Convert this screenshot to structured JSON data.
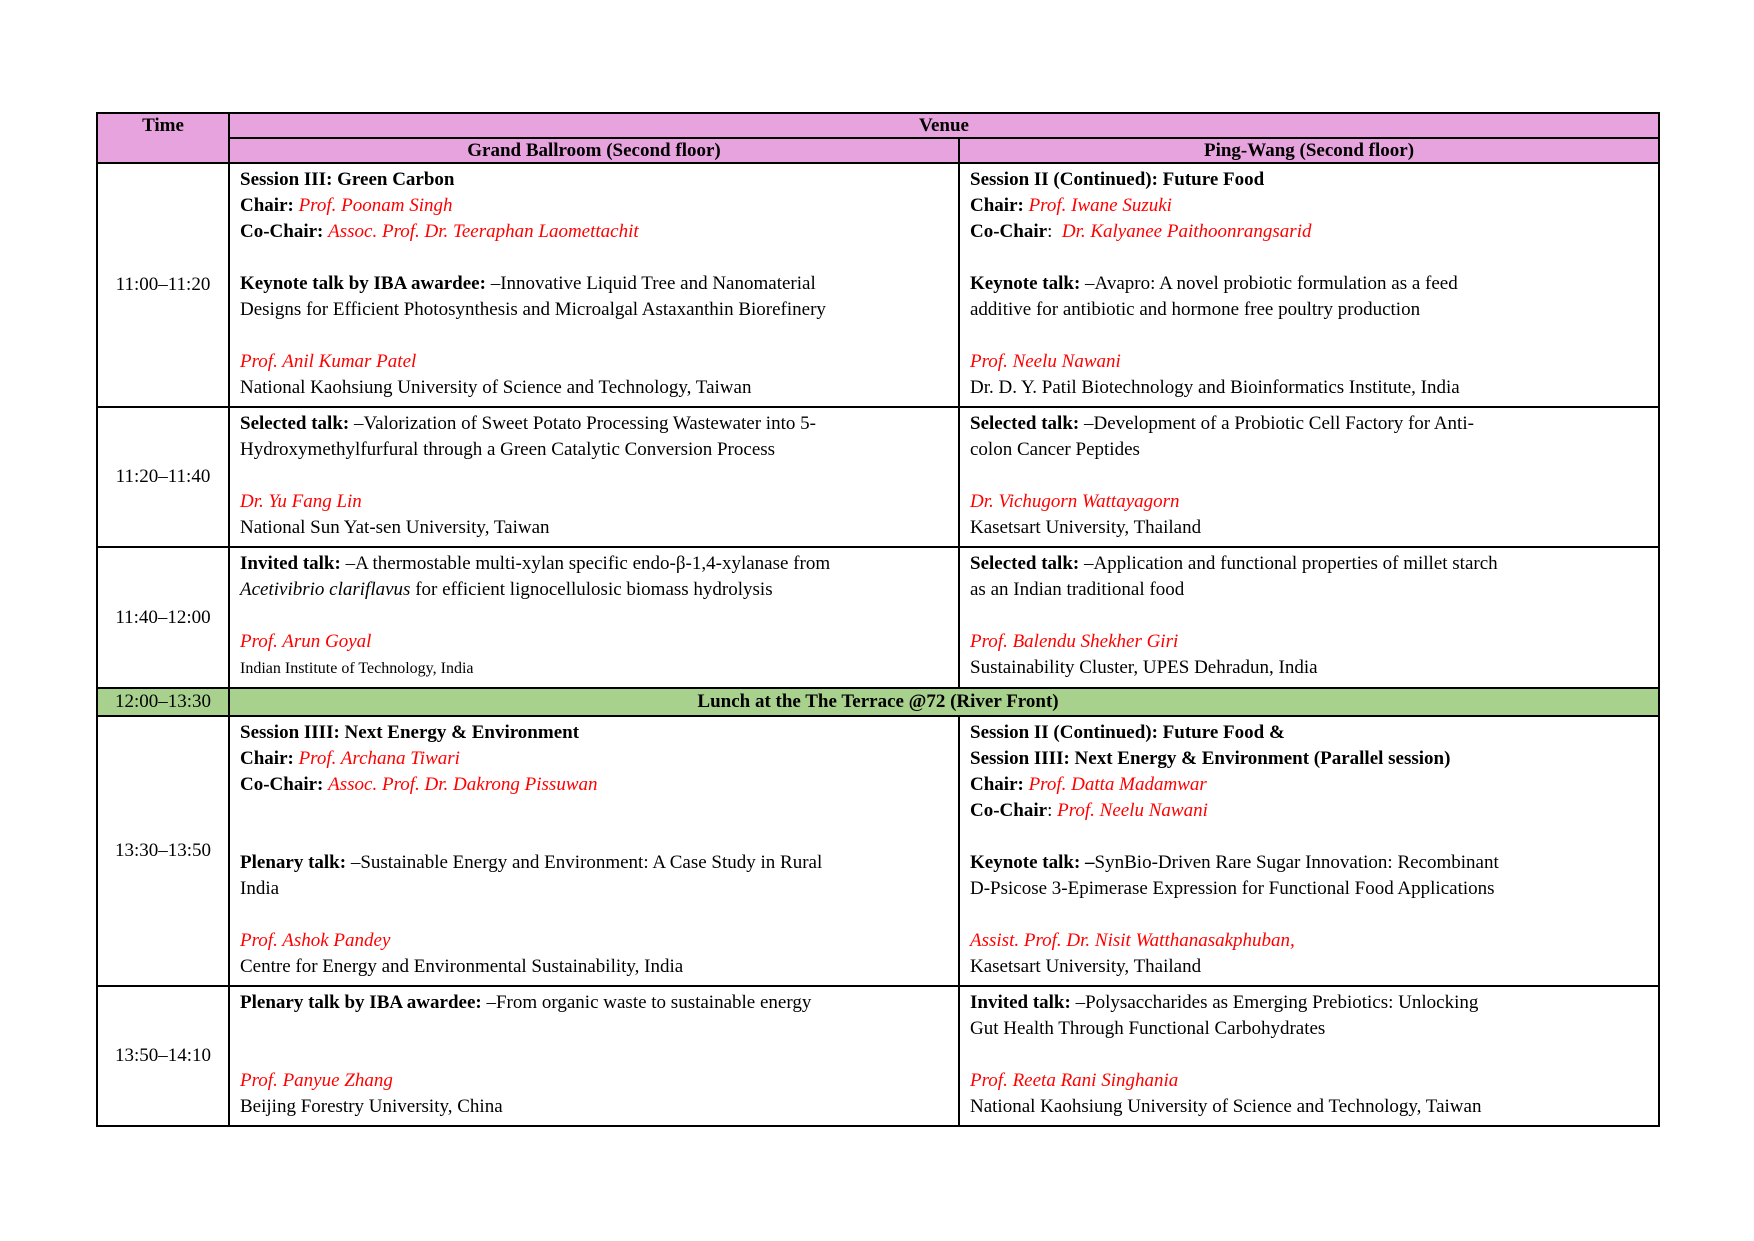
{
  "page": {
    "background": "#FFFFFF"
  },
  "table": {
    "colors": {
      "header_bg": "#E7A3DD",
      "lunch_bg": "#A9D18E",
      "speaker_red": "#FF0000",
      "border": "#000000"
    },
    "header": {
      "time": "Time",
      "venue": "Venue",
      "rooms": [
        "Grand Ballroom (Second floor)",
        "Ping-Wang (Second floor)"
      ]
    },
    "rows": [
      {
        "kind": "session",
        "time": "11:00–11:20",
        "cells": [
          {
            "lines": [
              [
                {
                  "t": "Session III: Green Carbon",
                  "s": "b"
                }
              ],
              [
                {
                  "t": "Chair: ",
                  "s": "b"
                },
                {
                  "t": "Prof. Poonam Singh",
                  "s": "r"
                }
              ],
              [
                {
                  "t": "Co-Chair: ",
                  "s": "b"
                },
                {
                  "t": "Assoc. Prof. Dr. Teeraphan Laomettachit",
                  "s": "r"
                }
              ],
              [],
              [
                {
                  "t": "Keynote talk by IBA awardee: ",
                  "s": "b"
                },
                {
                  "t": "–Innovative Liquid Tree and Nanomaterial",
                  "s": ""
                }
              ],
              [
                {
                  "t": "Designs for Efficient Photosynthesis and Microalgal Astaxanthin Biorefinery",
                  "s": ""
                }
              ],
              [],
              [
                {
                  "t": "Prof. Anil Kumar Patel",
                  "s": "r"
                }
              ],
              [
                {
                  "t": "National Kaohsiung University of Science and Technology, Taiwan",
                  "s": ""
                }
              ]
            ]
          },
          {
            "lines": [
              [
                {
                  "t": "Session II (Continued): Future Food",
                  "s": "b"
                }
              ],
              [
                {
                  "t": "Chair: ",
                  "s": "b"
                },
                {
                  "t": "Prof. Iwane Suzuki",
                  "s": "r"
                }
              ],
              [
                {
                  "t": "Co-Chair",
                  "s": "b"
                },
                {
                  "t": ":  ",
                  "s": ""
                },
                {
                  "t": "Dr. Kalyanee Paithoonrangsarid",
                  "s": "r"
                }
              ],
              [],
              [
                {
                  "t": "Keynote talk: ",
                  "s": "b"
                },
                {
                  "t": "–Avapro: A novel probiotic formulation as a feed",
                  "s": ""
                }
              ],
              [
                {
                  "t": "additive for antibiotic and hormone free poultry production",
                  "s": ""
                }
              ],
              [],
              [
                {
                  "t": "Prof. Neelu Nawani",
                  "s": "r"
                }
              ],
              [
                {
                  "t": "Dr. D. Y. Patil Biotechnology and Bioinformatics Institute, India",
                  "s": ""
                }
              ]
            ]
          }
        ]
      },
      {
        "kind": "session",
        "time": "11:20–11:40",
        "cells": [
          {
            "lines": [
              [
                {
                  "t": "Selected talk: ",
                  "s": "b"
                },
                {
                  "t": "–Valorization of Sweet Potato Processing Wastewater into 5-",
                  "s": ""
                }
              ],
              [
                {
                  "t": "Hydroxymethylfurfural through a Green Catalytic Conversion Process",
                  "s": ""
                }
              ],
              [],
              [
                {
                  "t": "Dr. Yu Fang Lin",
                  "s": "r"
                }
              ],
              [
                {
                  "t": "National Sun Yat-sen University, Taiwan",
                  "s": ""
                }
              ]
            ]
          },
          {
            "lines": [
              [
                {
                  "t": "Selected talk: ",
                  "s": "b"
                },
                {
                  "t": "–Development of a Probiotic Cell Factory for Anti-",
                  "s": ""
                }
              ],
              [
                {
                  "t": "colon Cancer Peptides",
                  "s": ""
                }
              ],
              [],
              [
                {
                  "t": "Dr. Vichugorn Wattayagorn",
                  "s": "r"
                }
              ],
              [
                {
                  "t": "Kasetsart University, Thailand",
                  "s": ""
                }
              ]
            ]
          }
        ]
      },
      {
        "kind": "session",
        "time": "11:40–12:00",
        "cells": [
          {
            "lines": [
              [
                {
                  "t": "Invited talk: ",
                  "s": "b"
                },
                {
                  "t": "–A thermostable multi-xylan specific endo-β-1,4-xylanase from",
                  "s": ""
                }
              ],
              [
                {
                  "t": "Acetivibrio clariflavus",
                  "s": "i"
                },
                {
                  "t": " for efficient lignocellulosic biomass hydrolysis",
                  "s": ""
                }
              ],
              [],
              [
                {
                  "t": "Prof. Arun Goyal",
                  "s": "r"
                }
              ],
              [
                {
                  "t": "Indian Institute of Technology, India",
                  "s": "sm"
                }
              ]
            ]
          },
          {
            "lines": [
              [
                {
                  "t": "Selected talk: ",
                  "s": "b"
                },
                {
                  "t": "–Application and functional properties of millet starch",
                  "s": ""
                }
              ],
              [
                {
                  "t": "as an Indian traditional food",
                  "s": ""
                }
              ],
              [],
              [
                {
                  "t": "Prof. Balendu Shekher Giri",
                  "s": "r"
                }
              ],
              [
                {
                  "t": "Sustainability Cluster, UPES Dehradun, India",
                  "s": ""
                }
              ]
            ]
          }
        ]
      },
      {
        "kind": "lunch",
        "time": "12:00–13:30",
        "label": "Lunch at the The Terrace @72 (River Front)"
      },
      {
        "kind": "session",
        "time": "13:30–13:50",
        "cells": [
          {
            "lines": [
              [
                {
                  "t": "Session IIII: Next Energy & Environment",
                  "s": "b"
                }
              ],
              [
                {
                  "t": "Chair: ",
                  "s": "b"
                },
                {
                  "t": "Prof. Archana Tiwari",
                  "s": "r"
                }
              ],
              [
                {
                  "t": "Co-Chair: ",
                  "s": "b"
                },
                {
                  "t": "Assoc. Prof. Dr. Dakrong Pissuwan",
                  "s": "r"
                }
              ],
              [],
              [],
              [
                {
                  "t": "Plenary talk: ",
                  "s": "b"
                },
                {
                  "t": "–Sustainable Energy and Environment: A Case Study in Rural",
                  "s": ""
                }
              ],
              [
                {
                  "t": "India",
                  "s": ""
                }
              ],
              [],
              [
                {
                  "t": "Prof. Ashok Pandey",
                  "s": "r"
                }
              ],
              [
                {
                  "t": "Centre for Energy and Environmental Sustainability, India",
                  "s": ""
                }
              ]
            ]
          },
          {
            "lines": [
              [
                {
                  "t": "Session II (Continued): Future Food &",
                  "s": "b"
                }
              ],
              [
                {
                  "t": "Session IIII: Next Energy & Environment (Parallel session)",
                  "s": "b"
                }
              ],
              [
                {
                  "t": "Chair: ",
                  "s": "b"
                },
                {
                  "t": "Prof. Datta Madamwar",
                  "s": "r"
                }
              ],
              [
                {
                  "t": "Co-Chair",
                  "s": "b"
                },
                {
                  "t": ": ",
                  "s": ""
                },
                {
                  "t": "Prof. Neelu Nawani",
                  "s": "r"
                }
              ],
              [],
              [
                {
                  "t": "Keynote talk: –",
                  "s": "b"
                },
                {
                  "t": "SynBio-Driven Rare Sugar Innovation: Recombinant",
                  "s": ""
                }
              ],
              [
                {
                  "t": "D-Psicose 3-Epimerase Expression for Functional Food Applications",
                  "s": ""
                }
              ],
              [],
              [
                {
                  "t": "Assist. Prof. Dr. Nisit Watthanasakphuban,",
                  "s": "r"
                }
              ],
              [
                {
                  "t": "Kasetsart University, Thailand",
                  "s": ""
                }
              ]
            ]
          }
        ]
      },
      {
        "kind": "session",
        "time": "13:50–14:10",
        "cells": [
          {
            "lines": [
              [
                {
                  "t": "Plenary talk by IBA awardee: ",
                  "s": "b"
                },
                {
                  "t": "–From organic waste to sustainable energy",
                  "s": ""
                }
              ],
              [],
              [],
              [
                {
                  "t": "Prof. Panyue Zhang",
                  "s": "r"
                }
              ],
              [
                {
                  "t": "Beijing Forestry University, China",
                  "s": ""
                }
              ]
            ]
          },
          {
            "lines": [
              [
                {
                  "t": "Invited talk: ",
                  "s": "b"
                },
                {
                  "t": "–Polysaccharides as Emerging Prebiotics: Unlocking",
                  "s": ""
                }
              ],
              [
                {
                  "t": "Gut Health Through Functional Carbohydrates",
                  "s": ""
                }
              ],
              [],
              [
                {
                  "t": "Prof. Reeta Rani Singhania",
                  "s": "r"
                }
              ],
              [
                {
                  "t": "National Kaohsiung University of Science and Technology, Taiwan",
                  "s": ""
                }
              ]
            ]
          }
        ]
      }
    ]
  }
}
